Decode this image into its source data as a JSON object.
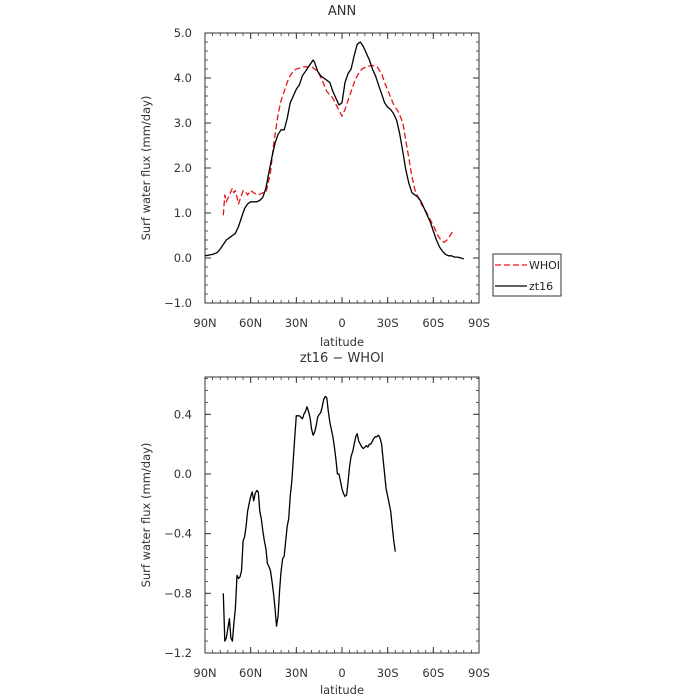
{
  "chart_data": [
    {
      "type": "line",
      "title": "ANN",
      "xlabel": "latitude",
      "ylabel": "Surf water flux (mm/day)",
      "xlim": [
        -90,
        90
      ],
      "ylim": [
        -1.0,
        5.0
      ],
      "x_ticks": [
        -90,
        -60,
        -30,
        0,
        30,
        60,
        90
      ],
      "x_tick_labels": [
        "90N",
        "60N",
        "30N",
        "0",
        "30S",
        "60S",
        "90S"
      ],
      "y_ticks": [
        -1.0,
        0.0,
        1.0,
        2.0,
        3.0,
        4.0,
        5.0
      ],
      "y_tick_labels": [
        "−1.0",
        "0.0",
        "1.0",
        "2.0",
        "3.0",
        "4.0",
        "5.0"
      ],
      "grid": false,
      "legend_position": "outside-right",
      "series": [
        {
          "name": "WHOI",
          "color": "#e8141c",
          "dash": "dashed",
          "points": [
            [
              -78,
              0.95
            ],
            [
              -77,
              1.4
            ],
            [
              -76,
              1.25
            ],
            [
              -74,
              1.4
            ],
            [
              -72,
              1.55
            ],
            [
              -71,
              1.45
            ],
            [
              -70,
              1.5
            ],
            [
              -69,
              1.35
            ],
            [
              -68,
              1.2
            ],
            [
              -67,
              1.3
            ],
            [
              -65,
              1.5
            ],
            [
              -63,
              1.45
            ],
            [
              -62,
              1.4
            ],
            [
              -60,
              1.5
            ],
            [
              -58,
              1.45
            ],
            [
              -55,
              1.4
            ],
            [
              -52,
              1.45
            ],
            [
              -50,
              1.45
            ],
            [
              -47,
              1.9
            ],
            [
              -45,
              2.5
            ],
            [
              -42,
              3.2
            ],
            [
              -40,
              3.5
            ],
            [
              -37,
              3.8
            ],
            [
              -35,
              4.0
            ],
            [
              -32,
              4.15
            ],
            [
              -30,
              4.2
            ],
            [
              -25,
              4.25
            ],
            [
              -20,
              4.25
            ],
            [
              -16,
              4.15
            ],
            [
              -13,
              3.95
            ],
            [
              -10,
              3.7
            ],
            [
              -6,
              3.55
            ],
            [
              -3,
              3.35
            ],
            [
              0,
              3.15
            ],
            [
              2,
              3.3
            ],
            [
              5,
              3.6
            ],
            [
              8,
              3.9
            ],
            [
              10,
              4.05
            ],
            [
              13,
              4.2
            ],
            [
              16,
              4.25
            ],
            [
              20,
              4.28
            ],
            [
              23,
              4.25
            ],
            [
              26,
              4.1
            ],
            [
              28,
              3.9
            ],
            [
              31,
              3.65
            ],
            [
              34,
              3.4
            ],
            [
              37,
              3.25
            ],
            [
              40,
              3.0
            ],
            [
              42,
              2.6
            ],
            [
              44,
              2.2
            ],
            [
              46,
              1.8
            ],
            [
              48,
              1.5
            ],
            [
              50,
              1.35
            ],
            [
              52,
              1.2
            ],
            [
              55,
              1.05
            ],
            [
              58,
              0.85
            ],
            [
              61,
              0.65
            ],
            [
              63,
              0.5
            ],
            [
              65,
              0.4
            ],
            [
              67,
              0.35
            ],
            [
              69,
              0.4
            ],
            [
              71,
              0.5
            ],
            [
              73,
              0.6
            ]
          ]
        },
        {
          "name": "zt16",
          "color": "#000000",
          "dash": "solid",
          "points": [
            [
              -90,
              0.05
            ],
            [
              -85,
              0.08
            ],
            [
              -82,
              0.12
            ],
            [
              -80,
              0.2
            ],
            [
              -78,
              0.3
            ],
            [
              -76,
              0.4
            ],
            [
              -74,
              0.45
            ],
            [
              -72,
              0.5
            ],
            [
              -70,
              0.55
            ],
            [
              -68,
              0.7
            ],
            [
              -66,
              0.9
            ],
            [
              -64,
              1.1
            ],
            [
              -62,
              1.2
            ],
            [
              -60,
              1.25
            ],
            [
              -58,
              1.25
            ],
            [
              -56,
              1.25
            ],
            [
              -54,
              1.28
            ],
            [
              -52,
              1.35
            ],
            [
              -50,
              1.55
            ],
            [
              -48,
              1.9
            ],
            [
              -46,
              2.25
            ],
            [
              -44,
              2.55
            ],
            [
              -42,
              2.75
            ],
            [
              -40,
              2.85
            ],
            [
              -38,
              2.85
            ],
            [
              -36,
              3.1
            ],
            [
              -34,
              3.45
            ],
            [
              -32,
              3.6
            ],
            [
              -30,
              3.75
            ],
            [
              -28,
              3.85
            ],
            [
              -26,
              4.05
            ],
            [
              -24,
              4.15
            ],
            [
              -22,
              4.25
            ],
            [
              -20,
              4.35
            ],
            [
              -19,
              4.4
            ],
            [
              -18,
              4.35
            ],
            [
              -16,
              4.15
            ],
            [
              -14,
              4.05
            ],
            [
              -12,
              4.0
            ],
            [
              -10,
              3.95
            ],
            [
              -8,
              3.9
            ],
            [
              -6,
              3.7
            ],
            [
              -4,
              3.55
            ],
            [
              -2,
              3.4
            ],
            [
              0,
              3.45
            ],
            [
              2,
              3.9
            ],
            [
              4,
              4.1
            ],
            [
              6,
              4.2
            ],
            [
              8,
              4.5
            ],
            [
              10,
              4.75
            ],
            [
              12,
              4.8
            ],
            [
              14,
              4.7
            ],
            [
              16,
              4.55
            ],
            [
              18,
              4.4
            ],
            [
              20,
              4.2
            ],
            [
              22,
              4.05
            ],
            [
              24,
              3.85
            ],
            [
              26,
              3.65
            ],
            [
              28,
              3.45
            ],
            [
              30,
              3.35
            ],
            [
              32,
              3.3
            ],
            [
              34,
              3.2
            ],
            [
              36,
              3.05
            ],
            [
              38,
              2.75
            ],
            [
              40,
              2.35
            ],
            [
              42,
              1.95
            ],
            [
              44,
              1.65
            ],
            [
              46,
              1.45
            ],
            [
              48,
              1.4
            ],
            [
              50,
              1.35
            ],
            [
              52,
              1.25
            ],
            [
              54,
              1.1
            ],
            [
              56,
              0.95
            ],
            [
              58,
              0.8
            ],
            [
              60,
              0.6
            ],
            [
              62,
              0.4
            ],
            [
              64,
              0.25
            ],
            [
              66,
              0.15
            ],
            [
              68,
              0.08
            ],
            [
              70,
              0.05
            ],
            [
              72,
              0.05
            ],
            [
              74,
              0.02
            ],
            [
              76,
              0.02
            ],
            [
              78,
              0.0
            ],
            [
              80,
              -0.02
            ]
          ]
        }
      ]
    },
    {
      "type": "line",
      "title": "zt16 − WHOI",
      "xlabel": "latitude",
      "ylabel": "Surf water flux (mm/day)",
      "xlim": [
        -90,
        90
      ],
      "ylim": [
        -1.2,
        0.65
      ],
      "x_ticks": [
        -90,
        -60,
        -30,
        0,
        30,
        60,
        90
      ],
      "x_tick_labels": [
        "90N",
        "60N",
        "30N",
        "0",
        "30S",
        "60S",
        "90S"
      ],
      "y_ticks": [
        -1.2,
        -0.8,
        -0.4,
        0.0,
        0.4
      ],
      "y_tick_labels": [
        "−1.2",
        "−0.8",
        "−0.4",
        "0.0",
        "0.4"
      ],
      "grid": false,
      "series": [
        {
          "name": "",
          "color": "#000000",
          "dash": "solid",
          "points": [
            [
              -78,
              -0.8
            ],
            [
              -77,
              -1.12
            ],
            [
              -76,
              -1.1
            ],
            [
              -74,
              -0.97
            ],
            [
              -73,
              -1.1
            ],
            [
              -72,
              -1.12
            ],
            [
              -71,
              -1.0
            ],
            [
              -70,
              -0.9
            ],
            [
              -69,
              -0.68
            ],
            [
              -68,
              -0.7
            ],
            [
              -67,
              -0.69
            ],
            [
              -66,
              -0.65
            ],
            [
              -65,
              -0.45
            ],
            [
              -64,
              -0.42
            ],
            [
              -63,
              -0.35
            ],
            [
              -62,
              -0.25
            ],
            [
              -61,
              -0.2
            ],
            [
              -60,
              -0.15
            ],
            [
              -59,
              -0.12
            ],
            [
              -58,
              -0.18
            ],
            [
              -57,
              -0.13
            ],
            [
              -56,
              -0.11
            ],
            [
              -55,
              -0.12
            ],
            [
              -54,
              -0.25
            ],
            [
              -53,
              -0.3
            ],
            [
              -52,
              -0.38
            ],
            [
              -51,
              -0.45
            ],
            [
              -50,
              -0.5
            ],
            [
              -49,
              -0.6
            ],
            [
              -48,
              -0.62
            ],
            [
              -47,
              -0.65
            ],
            [
              -46,
              -0.72
            ],
            [
              -45,
              -0.8
            ],
            [
              -44,
              -0.9
            ],
            [
              -43,
              -1.02
            ],
            [
              -42,
              -0.95
            ],
            [
              -41,
              -0.78
            ],
            [
              -40,
              -0.65
            ],
            [
              -39,
              -0.57
            ],
            [
              -38,
              -0.55
            ],
            [
              -37,
              -0.45
            ],
            [
              -36,
              -0.35
            ],
            [
              -35,
              -0.3
            ],
            [
              -34,
              -0.15
            ],
            [
              -33,
              -0.05
            ],
            [
              -32,
              0.1
            ],
            [
              -31,
              0.25
            ],
            [
              -30,
              0.39
            ],
            [
              -28,
              0.39
            ],
            [
              -27,
              0.38
            ],
            [
              -26,
              0.37
            ],
            [
              -25,
              0.4
            ],
            [
              -24,
              0.42
            ],
            [
              -23,
              0.45
            ],
            [
              -22,
              0.42
            ],
            [
              -21,
              0.38
            ],
            [
              -20,
              0.3
            ],
            [
              -19,
              0.26
            ],
            [
              -18,
              0.28
            ],
            [
              -17,
              0.32
            ],
            [
              -16,
              0.38
            ],
            [
              -15,
              0.4
            ],
            [
              -14,
              0.41
            ],
            [
              -13,
              0.45
            ],
            [
              -12,
              0.5
            ],
            [
              -11,
              0.52
            ],
            [
              -10,
              0.51
            ],
            [
              -9,
              0.42
            ],
            [
              -8,
              0.35
            ],
            [
              -7,
              0.3
            ],
            [
              -6,
              0.25
            ],
            [
              -5,
              0.18
            ],
            [
              -4,
              0.1
            ],
            [
              -3,
              0.0
            ],
            [
              -2,
              0.0
            ],
            [
              -1,
              -0.05
            ],
            [
              0,
              -0.1
            ],
            [
              1,
              -0.13
            ],
            [
              2,
              -0.15
            ],
            [
              3,
              -0.14
            ],
            [
              4,
              -0.05
            ],
            [
              5,
              0.05
            ],
            [
              6,
              0.12
            ],
            [
              7,
              0.15
            ],
            [
              8,
              0.2
            ],
            [
              9,
              0.25
            ],
            [
              10,
              0.27
            ],
            [
              11,
              0.22
            ],
            [
              12,
              0.2
            ],
            [
              13,
              0.18
            ],
            [
              14,
              0.17
            ],
            [
              15,
              0.18
            ],
            [
              16,
              0.19
            ],
            [
              17,
              0.18
            ],
            [
              18,
              0.2
            ],
            [
              19,
              0.2
            ],
            [
              20,
              0.22
            ],
            [
              21,
              0.24
            ],
            [
              22,
              0.25
            ],
            [
              23,
              0.25
            ],
            [
              24,
              0.26
            ],
            [
              25,
              0.24
            ],
            [
              26,
              0.2
            ],
            [
              27,
              0.1
            ],
            [
              28,
              0.0
            ],
            [
              29,
              -0.1
            ],
            [
              30,
              -0.15
            ],
            [
              31,
              -0.2
            ],
            [
              32,
              -0.25
            ],
            [
              33,
              -0.35
            ],
            [
              34,
              -0.45
            ],
            [
              35,
              -0.52
            ]
          ]
        }
      ]
    }
  ]
}
